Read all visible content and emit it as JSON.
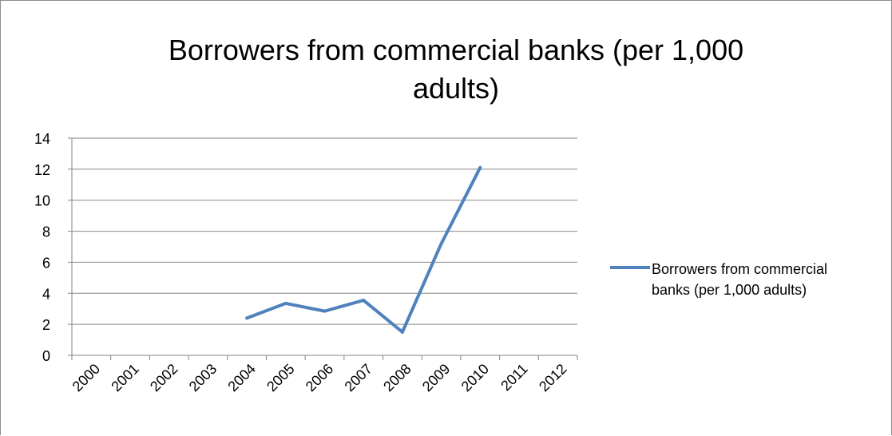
{
  "chart_data": {
    "type": "line",
    "title": "Borrowers from commercial banks (per 1,000 adults)",
    "title_lines": [
      "Borrowers from commercial banks (per 1,000",
      "adults)"
    ],
    "categories": [
      "2000",
      "2001",
      "2002",
      "2003",
      "2004",
      "2005",
      "2006",
      "2007",
      "2008",
      "2009",
      "2010",
      "2011",
      "2012"
    ],
    "series": [
      {
        "name": "Borrowers from commercial banks (per 1,000 adults)",
        "name_lines": [
          "Borrowers from commercial",
          "banks (per 1,000 adults)"
        ],
        "color": "#4f81bd",
        "values": [
          null,
          null,
          null,
          null,
          2.4,
          3.35,
          2.85,
          3.55,
          1.5,
          7.2,
          12.1,
          null,
          null
        ]
      }
    ],
    "ylim": [
      0,
      14
    ],
    "yticks": [
      0,
      2,
      4,
      6,
      8,
      10,
      12,
      14
    ],
    "xlabel": "",
    "ylabel": "",
    "grid": "horizontal",
    "legend_position": "right"
  }
}
